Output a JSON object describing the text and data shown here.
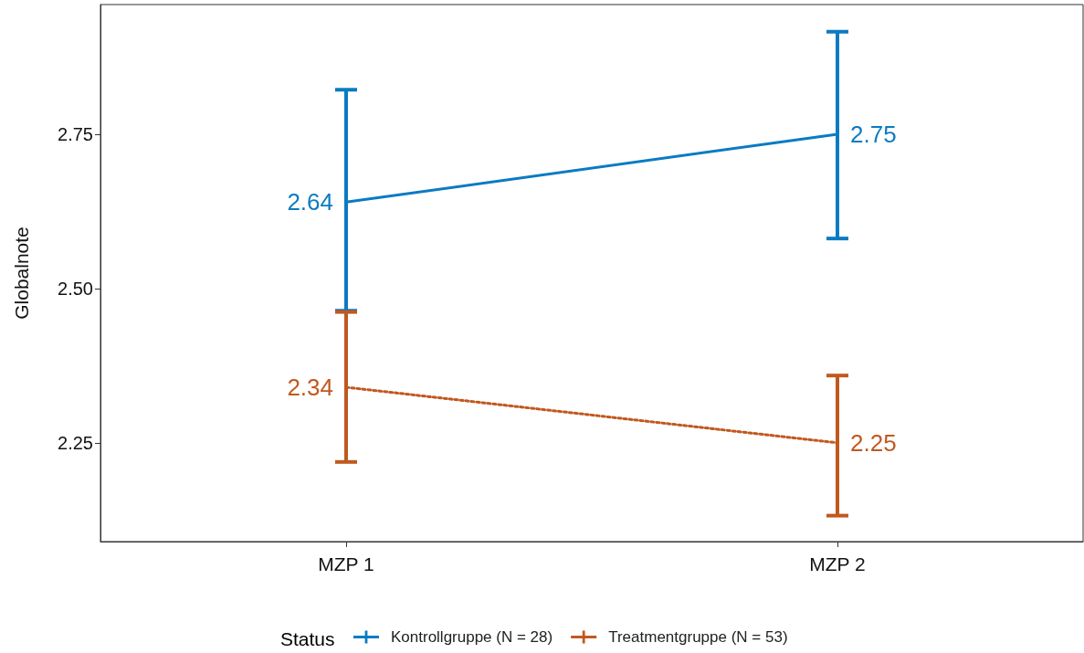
{
  "chart_data": {
    "type": "line",
    "ylabel": "Globalnote",
    "legend_title": "Status",
    "categories": [
      "MZP 1",
      "MZP 2"
    ],
    "ylim": [
      2.09,
      2.96
    ],
    "yticks": [
      {
        "value": 2.25,
        "label": "2.25"
      },
      {
        "value": 2.5,
        "label": "2.50"
      },
      {
        "value": 2.75,
        "label": "2.75"
      }
    ],
    "grid": false,
    "legend": "bottom",
    "marker": "none",
    "data_labels": true,
    "series": [
      {
        "name": "Kontrollgruppe (N = 28)",
        "color": "#0a7bc2",
        "line_style": "solid",
        "values": [
          2.64,
          2.75
        ],
        "errors": [
          [
            2.464,
            2.822
          ],
          [
            2.581,
            2.916
          ]
        ]
      },
      {
        "name": "Treatmentgruppe (N = 53)",
        "color": "#c0591e",
        "line_style": "dotted",
        "values": [
          2.34,
          2.25
        ],
        "errors": [
          [
            2.219,
            2.462
          ],
          [
            2.132,
            2.359
          ]
        ]
      }
    ]
  }
}
